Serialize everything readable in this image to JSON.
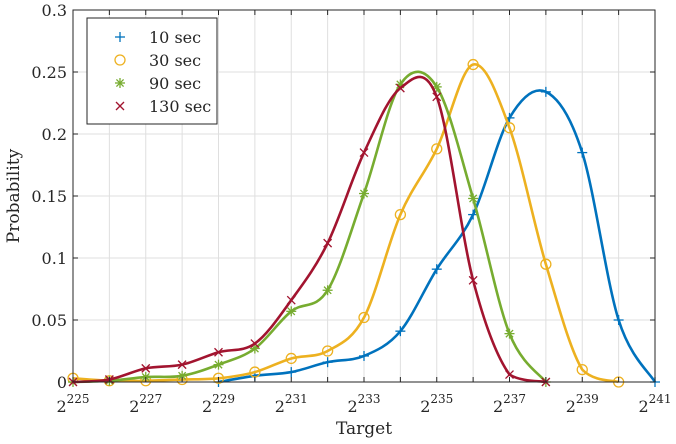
{
  "chart_data": {
    "type": "line",
    "xlabel": "Target",
    "ylabel": "Probability",
    "x_scale": "log2",
    "x_ticks": [
      {
        "base": "2",
        "exp": "225",
        "value": 225
      },
      {
        "base": "2",
        "exp": "227",
        "value": 227
      },
      {
        "base": "2",
        "exp": "229",
        "value": 229
      },
      {
        "base": "2",
        "exp": "231",
        "value": 231
      },
      {
        "base": "2",
        "exp": "233",
        "value": 233
      },
      {
        "base": "2",
        "exp": "235",
        "value": 235
      },
      {
        "base": "2",
        "exp": "237",
        "value": 237
      },
      {
        "base": "2",
        "exp": "239",
        "value": 239
      },
      {
        "base": "2",
        "exp": "241",
        "value": 241
      }
    ],
    "y_ticks": [
      "0",
      "0.05",
      "0.1",
      "0.15",
      "0.2",
      "0.25",
      "0.3"
    ],
    "xlim_log2": [
      225,
      241
    ],
    "ylim": [
      0,
      0.3
    ],
    "grid": true,
    "legend_position": "top-left",
    "series": [
      {
        "name": "10 sec",
        "color": "#0072BD",
        "marker": "plus",
        "points": [
          [
            229,
            0.0
          ],
          [
            230,
            0.005
          ],
          [
            231,
            0.008
          ],
          [
            232,
            0.016
          ],
          [
            233,
            0.021
          ],
          [
            234,
            0.041
          ],
          [
            235,
            0.091
          ],
          [
            236,
            0.135
          ],
          [
            237,
            0.213
          ],
          [
            238,
            0.234
          ],
          [
            239,
            0.185
          ],
          [
            240,
            0.05
          ],
          [
            241,
            0.0
          ]
        ]
      },
      {
        "name": "30 sec",
        "color": "#EDB120",
        "marker": "circle",
        "points": [
          [
            225,
            0.003
          ],
          [
            226,
            0.001
          ],
          [
            227,
            0.001
          ],
          [
            228,
            0.002
          ],
          [
            229,
            0.003
          ],
          [
            230,
            0.008
          ],
          [
            231,
            0.019
          ],
          [
            232,
            0.025
          ],
          [
            233,
            0.052
          ],
          [
            234,
            0.135
          ],
          [
            235,
            0.188
          ],
          [
            236,
            0.256
          ],
          [
            237,
            0.205
          ],
          [
            238,
            0.095
          ],
          [
            239,
            0.01
          ],
          [
            240,
            0.0
          ]
        ]
      },
      {
        "name": "90 sec",
        "color": "#77AC30",
        "marker": "asterisk",
        "points": [
          [
            225,
            0.0
          ],
          [
            226,
            0.001
          ],
          [
            227,
            0.004
          ],
          [
            228,
            0.005
          ],
          [
            229,
            0.014
          ],
          [
            230,
            0.027
          ],
          [
            231,
            0.057
          ],
          [
            232,
            0.074
          ],
          [
            233,
            0.152
          ],
          [
            234,
            0.24
          ],
          [
            235,
            0.238
          ],
          [
            236,
            0.148
          ],
          [
            237,
            0.039
          ],
          [
            238,
            0.0
          ]
        ]
      },
      {
        "name": "130 sec",
        "color": "#A2142F",
        "marker": "cross",
        "points": [
          [
            225,
            0.0
          ],
          [
            226,
            0.002
          ],
          [
            227,
            0.011
          ],
          [
            228,
            0.014
          ],
          [
            229,
            0.024
          ],
          [
            230,
            0.031
          ],
          [
            231,
            0.066
          ],
          [
            232,
            0.112
          ],
          [
            233,
            0.185
          ],
          [
            234,
            0.237
          ],
          [
            235,
            0.23
          ],
          [
            236,
            0.082
          ],
          [
            237,
            0.006
          ],
          [
            238,
            0.0
          ]
        ]
      }
    ]
  }
}
